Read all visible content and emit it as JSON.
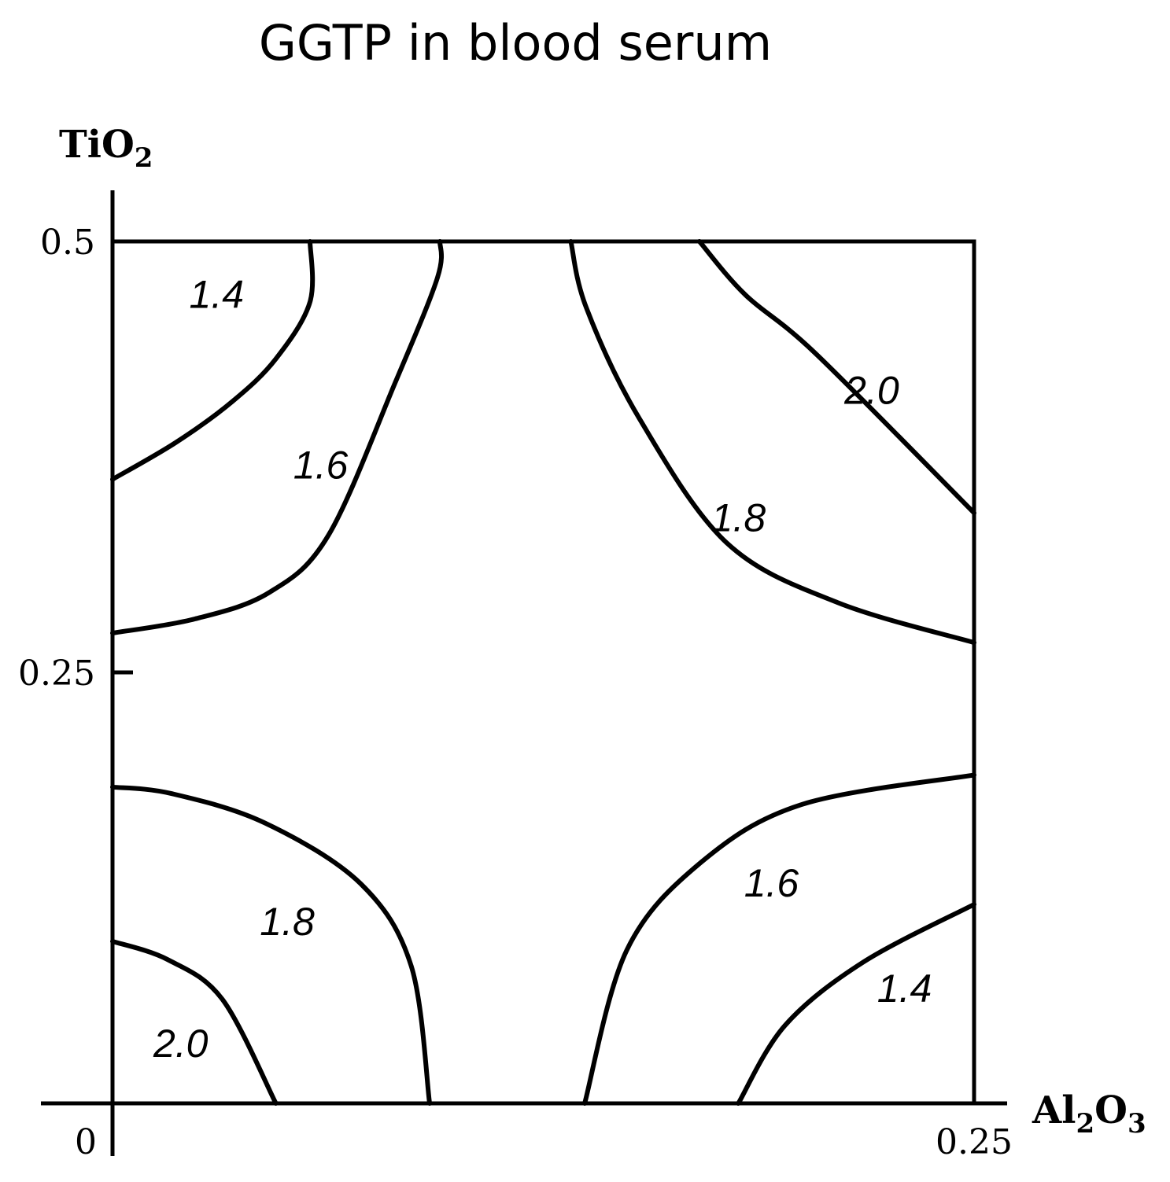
{
  "chart_data": {
    "type": "contour",
    "title": "GGTP in blood serum",
    "xlabel": {
      "main": "Al",
      "sub1": "2",
      "mid": "O",
      "sub2": "3"
    },
    "ylabel": {
      "main": "TiO",
      "sub": "2"
    },
    "xlim": [
      0,
      0.25
    ],
    "ylim": [
      0,
      0.5
    ],
    "x_ticks": [
      {
        "value": 0,
        "label": "0"
      },
      {
        "value": 0.25,
        "label": "0.25"
      }
    ],
    "y_ticks": [
      {
        "value": 0.25,
        "label": "0.25"
      },
      {
        "value": 0.5,
        "label": "0.5"
      }
    ],
    "contours": [
      {
        "level": "1.4",
        "points": [
          [
            0.0,
            0.362
          ],
          [
            0.0183,
            0.3833
          ],
          [
            0.0348,
            0.4072
          ],
          [
            0.0474,
            0.4319
          ],
          [
            0.0573,
            0.4649
          ],
          [
            0.0573,
            0.5
          ]
        ],
        "label_pos": [
          0.0302,
          0.4696
        ]
      },
      {
        "level": "1.6",
        "points": [
          [
            0.0,
            0.2728
          ],
          [
            0.0239,
            0.281
          ],
          [
            0.0456,
            0.2965
          ],
          [
            0.0627,
            0.3297
          ],
          [
            0.082,
            0.418
          ],
          [
            0.0943,
            0.479
          ],
          [
            0.095,
            0.5
          ]
        ],
        "label_pos": [
          0.0604,
          0.3706
        ]
      },
      {
        "level": "1.8",
        "points": [
          [
            0.133,
            0.5
          ],
          [
            0.1375,
            0.4614
          ],
          [
            0.1528,
            0.3975
          ],
          [
            0.1782,
            0.3252
          ],
          [
            0.2103,
            0.2906
          ],
          [
            0.25,
            0.2673
          ]
        ],
        "label_pos": [
          0.1816,
          0.3402
        ]
      },
      {
        "level": "2.0",
        "points": [
          [
            0.1703,
            0.5
          ],
          [
            0.1837,
            0.4689
          ],
          [
            0.2041,
            0.4348
          ],
          [
            0.25,
            0.3425
          ]
        ],
        "label_pos": [
          0.2203,
          0.4139
        ]
      },
      {
        "level": "1.8",
        "points": [
          [
            0.0,
            0.1835
          ],
          [
            0.0171,
            0.1797
          ],
          [
            0.0442,
            0.1627
          ],
          [
            0.072,
            0.1274
          ],
          [
            0.0867,
            0.0796
          ],
          [
            0.092,
            0.0
          ]
        ],
        "label_pos": [
          0.0507,
          0.1059
        ]
      },
      {
        "level": "2.0",
        "points": [
          [
            0.0,
            0.094
          ],
          [
            0.016,
            0.0834
          ],
          [
            0.0319,
            0.0603
          ],
          [
            0.0474,
            0.0
          ]
        ],
        "label_pos": [
          0.0198,
          0.0351
        ]
      },
      {
        "level": "1.6",
        "points": [
          [
            0.137,
            0.0
          ],
          [
            0.1492,
            0.0888
          ],
          [
            0.1709,
            0.14
          ],
          [
            0.2002,
            0.1735
          ],
          [
            0.25,
            0.1905
          ]
        ],
        "label_pos": [
          0.1912,
          0.1283
        ]
      },
      {
        "level": "1.4",
        "points": [
          [
            0.1816,
            0.0
          ],
          [
            0.1951,
            0.0451
          ],
          [
            0.2178,
            0.0819
          ],
          [
            0.25,
            0.1154
          ]
        ],
        "label_pos": [
          0.2298,
          0.067
        ]
      }
    ],
    "grid": false,
    "legend": "none"
  }
}
